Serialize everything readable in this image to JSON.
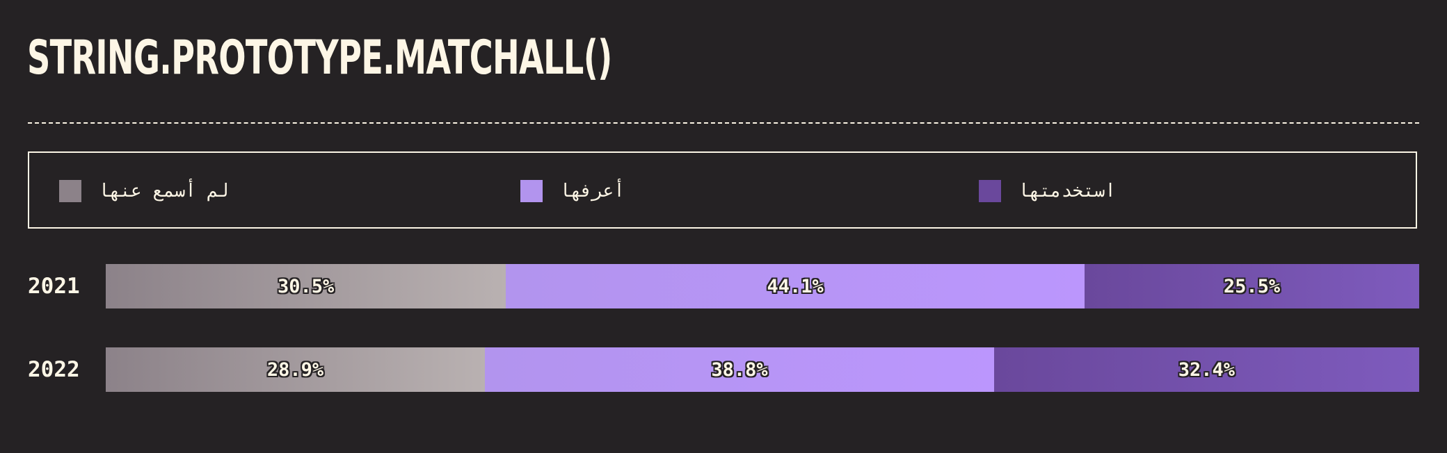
{
  "chart_data": {
    "type": "bar",
    "orientation": "horizontal",
    "stacked": true,
    "title": "STRING.PROTOTYPE.MATCHALL()",
    "categories": [
      "2021",
      "2022"
    ],
    "series": [
      {
        "name": "لم أسمع عنها",
        "values": [
          30.5,
          28.9
        ],
        "labels": [
          "30.5%",
          "28.9%"
        ],
        "color": "#8c8289",
        "color_end": "#b9b1b1"
      },
      {
        "name": "أعرفها",
        "values": [
          44.1,
          38.8
        ],
        "labels": [
          "44.1%",
          "38.8%"
        ],
        "color": "#b294ee",
        "color_end": "#bb96fd"
      },
      {
        "name": "استخدمتها",
        "values": [
          25.5,
          32.4
        ],
        "labels": [
          "25.5%",
          "32.4%"
        ],
        "color": "#6a489c",
        "color_end": "#7e5bbd"
      }
    ],
    "unit": "%",
    "xlim": [
      0,
      100
    ],
    "legend": "top",
    "grid": false
  },
  "colors": {
    "background": "#252224",
    "foreground": "#fdf6e6"
  }
}
